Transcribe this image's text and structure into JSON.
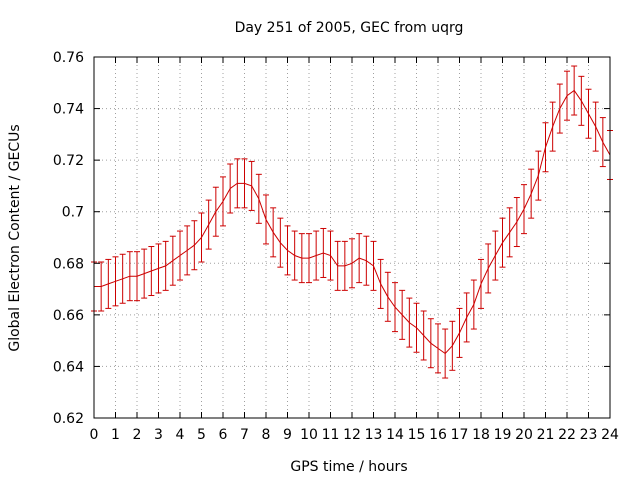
{
  "chart_data": {
    "type": "line",
    "title": "Day 251 of 2005, GEC from uqrg",
    "xlabel": "GPS time / hours",
    "ylabel": "Global Electron Content / GECUs",
    "xlim": [
      0,
      24
    ],
    "ylim": [
      0.62,
      0.76
    ],
    "grid": true,
    "error_bars": true,
    "x_ticks": [
      "0",
      "1",
      "2",
      "3",
      "4",
      "5",
      "6",
      "7",
      "8",
      "9",
      "10",
      "11",
      "12",
      "13",
      "14",
      "15",
      "16",
      "17",
      "18",
      "19",
      "20",
      "21",
      "22",
      "23",
      "24"
    ],
    "y_ticks": [
      "0.62",
      "0.64",
      "0.66",
      "0.68",
      "0.7",
      "0.72",
      "0.74",
      "0.76"
    ],
    "colors": {
      "series": "#cc0000",
      "grid": "#a0a0a0",
      "axis": "#000000"
    },
    "series": [
      {
        "x": [
          0,
          0.333,
          0.667,
          1,
          1.333,
          1.667,
          2,
          2.333,
          2.667,
          3,
          3.333,
          3.667,
          4,
          4.333,
          4.667,
          5,
          5.333,
          5.667,
          6,
          6.333,
          6.667,
          7,
          7.333,
          7.667,
          8,
          8.333,
          8.667,
          9,
          9.333,
          9.667,
          10,
          10.333,
          10.667,
          11,
          11.333,
          11.667,
          12,
          12.333,
          12.667,
          13,
          13.333,
          13.667,
          14,
          14.333,
          14.667,
          15,
          15.333,
          15.667,
          16,
          16.333,
          16.667,
          17,
          17.333,
          17.667,
          18,
          18.333,
          18.667,
          19,
          19.333,
          19.667,
          20,
          20.333,
          20.667,
          21,
          21.333,
          21.667,
          22,
          22.333,
          22.667,
          23,
          23.333,
          23.667,
          24
        ],
        "y": [
          0.671,
          0.671,
          0.672,
          0.673,
          0.674,
          0.675,
          0.675,
          0.676,
          0.677,
          0.678,
          0.679,
          0.681,
          0.683,
          0.685,
          0.687,
          0.69,
          0.695,
          0.7,
          0.704,
          0.709,
          0.711,
          0.711,
          0.71,
          0.705,
          0.697,
          0.692,
          0.688,
          0.685,
          0.683,
          0.682,
          0.682,
          0.683,
          0.684,
          0.683,
          0.679,
          0.679,
          0.68,
          0.682,
          0.681,
          0.679,
          0.672,
          0.667,
          0.663,
          0.66,
          0.657,
          0.655,
          0.652,
          0.649,
          0.647,
          0.645,
          0.648,
          0.653,
          0.659,
          0.664,
          0.672,
          0.678,
          0.683,
          0.688,
          0.692,
          0.696,
          0.701,
          0.707,
          0.714,
          0.725,
          0.733,
          0.74,
          0.745,
          0.747,
          0.743,
          0.738,
          0.733,
          0.727,
          0.722
        ],
        "err": 0.0095
      }
    ]
  }
}
